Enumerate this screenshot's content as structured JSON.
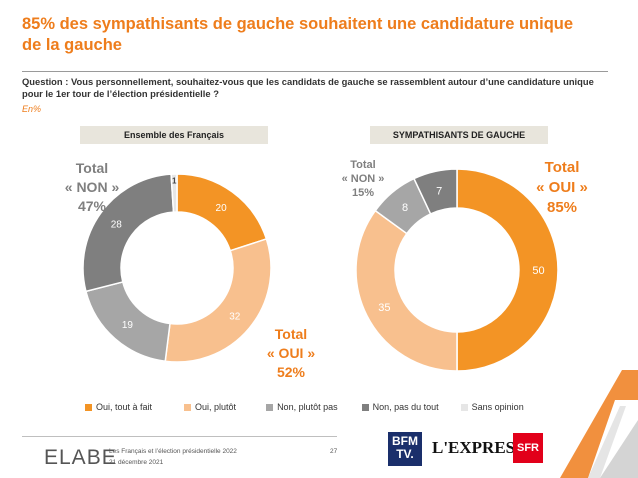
{
  "title": "85% des sympathisants de gauche souhaitent une candidature unique de la gauche",
  "question": "Question : Vous personnellement, souhaitez-vous que les candidats de gauche se rassemblent autour d’une candidature unique pour le 1er tour de l’élection présidentielle ?",
  "unit": "En%",
  "colors": {
    "accent": "#ee7d1c",
    "oui_tout_a_fait": "#f39425",
    "oui_plutot": "#f8c08e",
    "non_plutot_pas": "#a6a6a6",
    "non_pas_du_tout": "#7f7f7f",
    "sans_opinion": "#e6e6e6"
  },
  "chart_data": [
    {
      "type": "pie",
      "title": "Ensemble des Français",
      "categories": [
        "Oui, tout à fait",
        "Oui, plutôt",
        "Non, plutôt pas",
        "Non, pas du tout",
        "Sans opinion"
      ],
      "values": [
        20,
        32,
        19,
        28,
        1
      ],
      "labels": [
        "20",
        "32",
        "19",
        "28",
        "1"
      ],
      "total_oui": [
        "Total",
        "« OUI »",
        "52%"
      ],
      "total_non": [
        "Total",
        "« NON »",
        "47%"
      ]
    },
    {
      "type": "pie",
      "title": "SYMPATHISANTS DE GAUCHE",
      "categories": [
        "Oui, tout à fait",
        "Oui, plutôt",
        "Non, plutôt pas",
        "Non, pas du tout"
      ],
      "values": [
        50,
        35,
        8,
        7
      ],
      "labels": [
        "50",
        "35",
        "8",
        "7"
      ],
      "total_oui": [
        "Total",
        "« OUI »",
        "85%"
      ],
      "total_non": [
        "Total",
        "« NON »",
        "15%"
      ]
    }
  ],
  "legend": [
    "Oui, tout à fait",
    "Oui, plutôt",
    "Non, plutôt pas",
    "Non, pas du tout",
    "Sans opinion"
  ],
  "footer": {
    "logo": "ELABE",
    "line1": "Les Français et l’élection présidentielle 2022",
    "line2": "21 décembre 2021",
    "page": "27",
    "partner1_a": "BFM",
    "partner1_b": "TV.",
    "partner2": "L'EXPRESS",
    "partner3": "SFR"
  }
}
